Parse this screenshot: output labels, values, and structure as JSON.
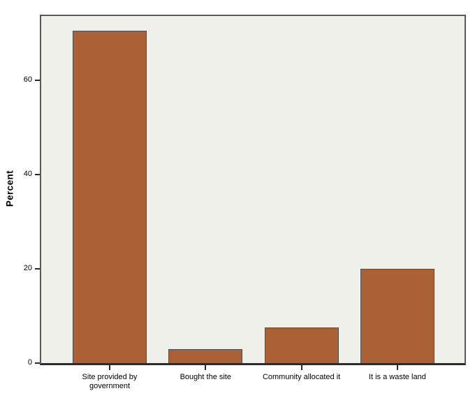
{
  "chart_data": {
    "type": "bar",
    "title": "",
    "categories": [
      "Site provided by government",
      "Bought the site",
      "Community allocated it",
      "It is a waste land"
    ],
    "values": [
      70.5,
      3,
      7.5,
      20
    ],
    "xlabel": "",
    "ylabel": "Percent",
    "yticks": [
      0,
      20,
      40,
      60
    ],
    "ylim": [
      0,
      73.5
    ],
    "grid": false,
    "legend": false,
    "colors": {
      "bar_fill": "#ab6136",
      "bar_border": "#4d4d4d",
      "plot_background": "#f0f0eb",
      "frame_border": "#58585a",
      "axis_line": "#2b2b2b",
      "text": "#000000"
    }
  }
}
